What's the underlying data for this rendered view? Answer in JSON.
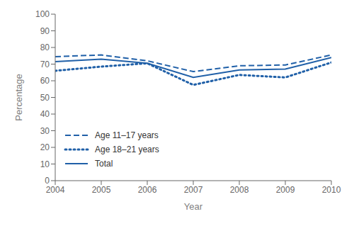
{
  "chart_data": {
    "type": "line",
    "xlabel": "Year",
    "ylabel": "Percentage",
    "x": [
      2004,
      2005,
      2006,
      2007,
      2008,
      2009,
      2010
    ],
    "series": [
      {
        "name": "Age 11–17 years",
        "color": "#2060a8",
        "line_style": "dashed",
        "values": [
          74.5,
          75.5,
          72.0,
          65.5,
          69.0,
          69.5,
          75.5
        ]
      },
      {
        "name": "Age 18–21 years",
        "color": "#2060a8",
        "line_style": "dotted",
        "values": [
          66.0,
          68.5,
          70.5,
          57.5,
          63.5,
          62.0,
          71.0
        ]
      },
      {
        "name": "Total",
        "color": "#2060a8",
        "line_style": "solid",
        "values": [
          71.5,
          73.0,
          70.5,
          62.0,
          66.5,
          67.0,
          74.0
        ]
      }
    ],
    "xlim": [
      2004,
      2010
    ],
    "xticks": [
      2004,
      2005,
      2006,
      2007,
      2008,
      2009,
      2010
    ],
    "ylim": [
      0,
      100
    ],
    "yticks": [
      0,
      10,
      20,
      30,
      40,
      50,
      60,
      70,
      80,
      90,
      100
    ],
    "grid": false,
    "legend": "lower left"
  }
}
